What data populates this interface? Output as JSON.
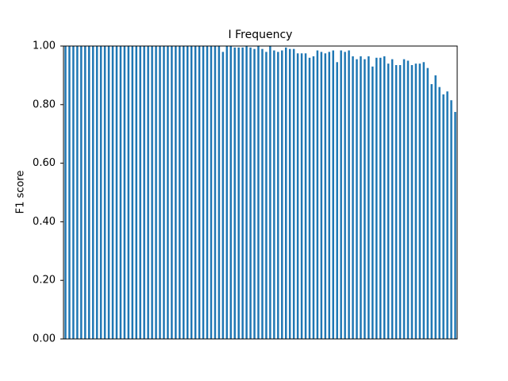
{
  "chart_data": {
    "type": "bar",
    "title": "I Frequency",
    "y_label": "F1 score",
    "categories": [
      null,
      null,
      null,
      null,
      null,
      null,
      null,
      null,
      null,
      null,
      null,
      null,
      null,
      null,
      null,
      null,
      null,
      null,
      null,
      null,
      null,
      null,
      null,
      null,
      null,
      null,
      null,
      null,
      null,
      null,
      null,
      null,
      null,
      null,
      null,
      null,
      null,
      null,
      null,
      null,
      null,
      null,
      null,
      null,
      null,
      null,
      null,
      null,
      null,
      null,
      null,
      null,
      null,
      null,
      null,
      null,
      null,
      null,
      null,
      null,
      null,
      null,
      null,
      null,
      null,
      null,
      null,
      null,
      null,
      null,
      null,
      null,
      null,
      null,
      null,
      null,
      null,
      null,
      null,
      null,
      null,
      null,
      null,
      null,
      null,
      null,
      null,
      null,
      null,
      null,
      null,
      null,
      null,
      null,
      null,
      null,
      null,
      null,
      null,
      null
    ],
    "values": [
      1,
      1,
      1,
      1,
      1,
      1,
      1,
      1,
      1,
      1,
      1,
      1,
      1,
      1,
      1,
      1,
      1,
      1,
      1,
      1,
      1,
      1,
      1,
      1,
      1,
      1,
      1,
      1,
      1,
      1,
      1,
      1,
      1,
      1,
      1,
      1,
      1,
      1,
      1,
      1,
      0.98,
      1,
      1,
      0.995,
      0.995,
      0.995,
      1,
      0.995,
      0.99,
      1,
      0.99,
      0.98,
      1,
      0.985,
      0.98,
      0.985,
      0.995,
      0.99,
      0.99,
      0.975,
      0.975,
      0.975,
      0.96,
      0.965,
      0.985,
      0.98,
      0.975,
      0.98,
      0.985,
      0.945,
      0.985,
      0.98,
      0.985,
      0.965,
      0.955,
      0.965,
      0.955,
      0.965,
      0.93,
      0.96,
      0.96,
      0.965,
      0.94,
      0.955,
      0.935,
      0.935,
      0.955,
      0.95,
      0.935,
      0.94,
      0.94,
      0.945,
      0.925,
      0.87,
      0.9,
      0.86,
      0.835,
      0.845,
      0.815,
      0.775
    ],
    "color": "#1f77b4",
    "ylim": [
      0,
      1
    ],
    "yticks": [
      {
        "value": 0,
        "label": "0.00"
      },
      {
        "value": 0.2,
        "label": "0.20"
      },
      {
        "value": 0.4,
        "label": "0.40"
      },
      {
        "value": 0.6,
        "label": "0.60"
      },
      {
        "value": 0.8,
        "label": "0.80"
      },
      {
        "value": 1,
        "label": "1.00"
      }
    ],
    "grid": false
  }
}
